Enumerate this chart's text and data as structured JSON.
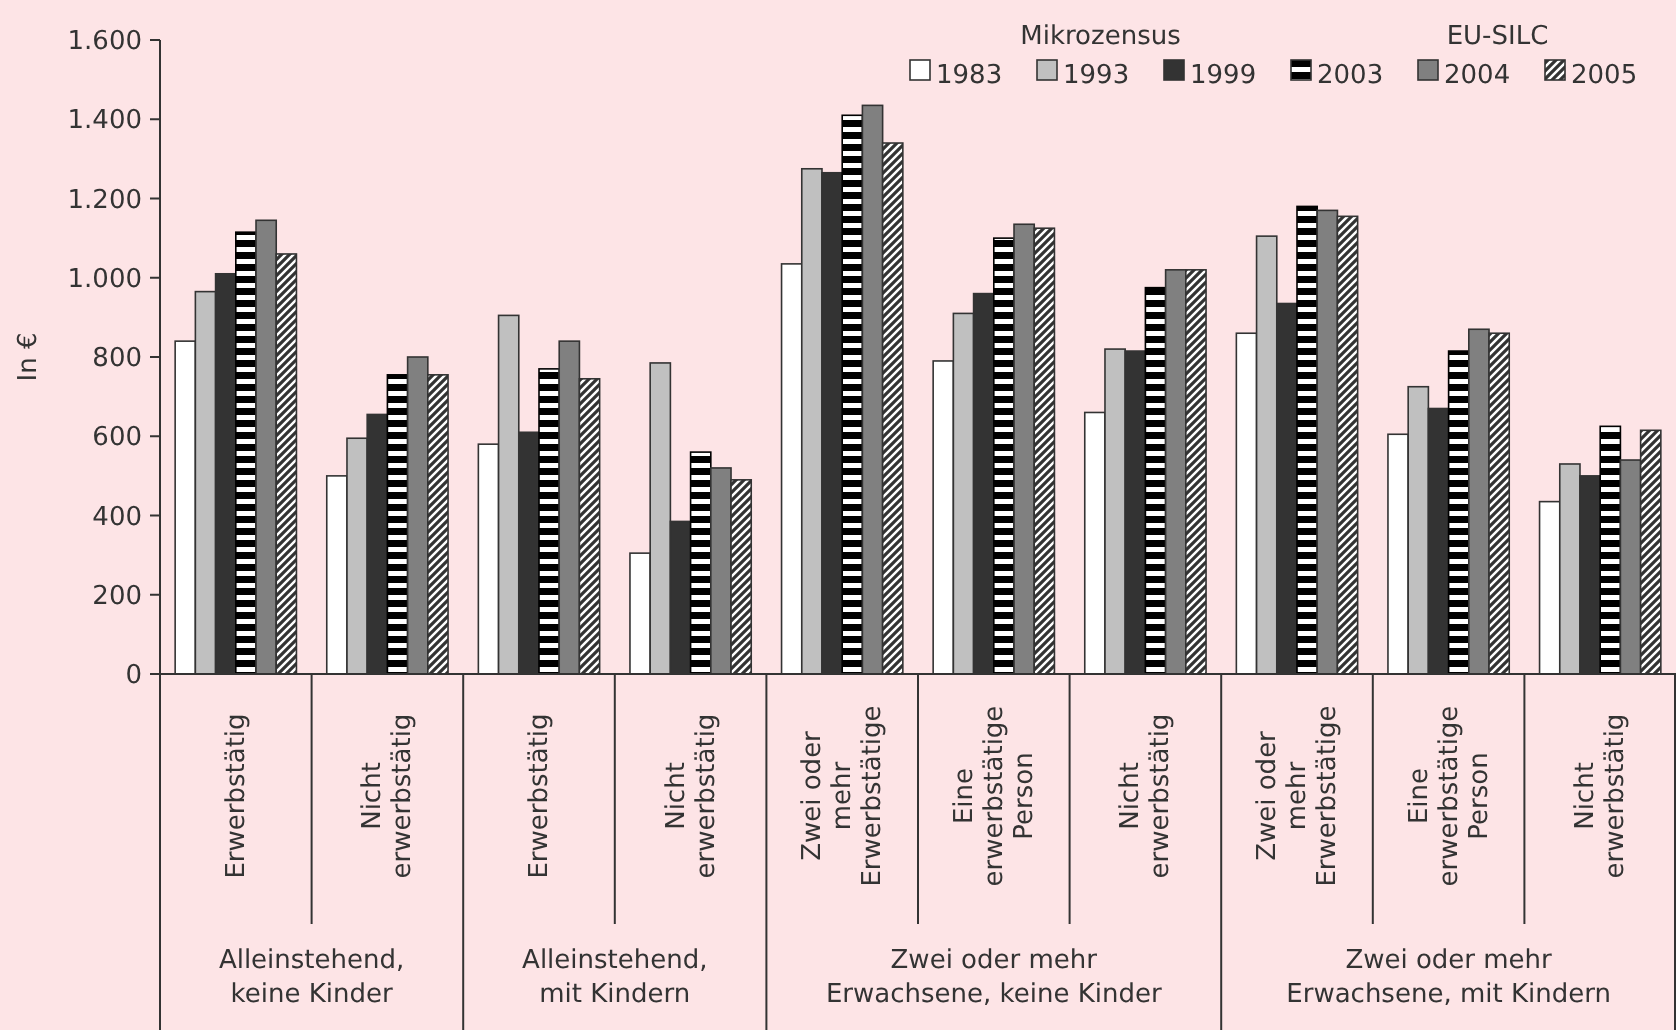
{
  "chart_data": {
    "type": "bar",
    "ylabel": "In €",
    "categories": [
      "Erwerbstätig",
      "Nicht\nerwerbstätig",
      "Erwerbstätig",
      "Nicht\nerwerbstätig",
      "Zwei oder\nmehr\nErwerbstätige",
      "Eine\nerwerbstätige\nPerson",
      "Nicht\nerwerbstätig",
      "Zwei oder\nmehr\nErwerbstätige",
      "Eine\nerwerbstätige\nPerson",
      "Nicht\nerwerbstätig"
    ],
    "series": [
      {
        "name": "1983",
        "color": "#ffffff",
        "values": [
          840,
          500,
          580,
          305,
          1035,
          790,
          660,
          860,
          605,
          435
        ]
      },
      {
        "name": "1993",
        "color": "#c0c0c0",
        "values": [
          965,
          595,
          905,
          785,
          1275,
          910,
          820,
          1105,
          725,
          530
        ]
      },
      {
        "name": "1999",
        "color": "#333333",
        "values": [
          1010,
          655,
          610,
          385,
          1265,
          960,
          815,
          935,
          670,
          500
        ]
      },
      {
        "name": "2003",
        "color": "#000000",
        "values": [
          1115,
          755,
          770,
          560,
          1410,
          1100,
          975,
          1180,
          815,
          625
        ]
      },
      {
        "name": "2004",
        "color": "#808080",
        "values": [
          1145,
          800,
          840,
          520,
          1435,
          1135,
          1020,
          1170,
          870,
          540
        ]
      },
      {
        "name": "2005",
        "color": "#333333",
        "values": [
          1060,
          755,
          745,
          490,
          1340,
          1125,
          1020,
          1155,
          860,
          615
        ]
      }
    ],
    "ylim": [
      0,
      1600
    ],
    "yticks": [
      0,
      {
        "value": 200,
        "label": "200"
      },
      {
        "value": 400,
        "label": "400"
      },
      {
        "value": 600,
        "label": "600"
      },
      {
        "value": 800,
        "label": "800"
      },
      {
        "value": 1000,
        "label": "1.000"
      },
      {
        "value": 1200,
        "label": "1.200"
      },
      {
        "value": 1400,
        "label": "1.400"
      },
      {
        "value": 1600,
        "label": "1.600"
      }
    ],
    "grid": false,
    "legend": "top right",
    "annotations": [
      "Mikrozensus",
      "EU-SILC",
      "Alleinstehend,\nkeine Kinder",
      "Alleinstehend,\nmit Kindern",
      "Zwei oder mehr\nErwachsene, keine Kinder",
      "Zwei oder mehr\nErwachsene, mit Kindern"
    ]
  }
}
